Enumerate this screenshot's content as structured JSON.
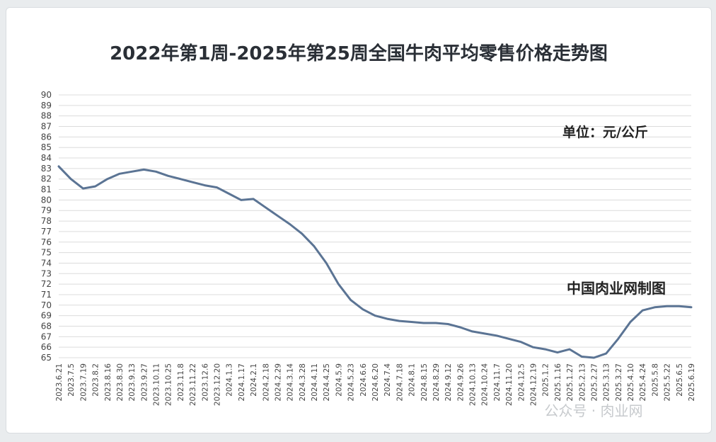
{
  "chart_data": {
    "type": "line",
    "title": "2022年第1周-2025年第25周全国牛肉平均零售价格走势图",
    "unit_label": "单位：元/公斤",
    "source_label": "中国肉业网制图",
    "watermark": "公众号 · 肉业网",
    "ylim": [
      65,
      90
    ],
    "yticks": [
      65,
      66,
      67,
      68,
      69,
      70,
      71,
      72,
      73,
      74,
      75,
      76,
      77,
      78,
      79,
      80,
      81,
      82,
      83,
      84,
      85,
      86,
      87,
      88,
      89,
      90
    ],
    "grid": true,
    "line_color": "#5b7494",
    "categories": [
      "2023.6.21",
      "2023.7.5",
      "2023.7.19",
      "2023.8.2",
      "2023.8.16",
      "2023.8.30",
      "2023.9.13",
      "2023.9.27",
      "2023.10.11",
      "2023.10.25",
      "2023.11.8",
      "2023.11.22",
      "2023.12.6",
      "2023.12.20",
      "2024.1.3",
      "2024.1.17",
      "2024.2.1",
      "2024.2.18",
      "2024.2.29",
      "2024.3.14",
      "2024.3.28",
      "2024.4.11",
      "2024.4.25",
      "2024.5.9",
      "2024.5.23",
      "2024.6.6",
      "2024.6.20",
      "2024.7.4",
      "2024.7.18",
      "2024.8.1",
      "2024.8.15",
      "2024.8.29",
      "2024.9.12",
      "2024.9.26",
      "2024.10.13",
      "2024.10.24",
      "2024.11.7",
      "2024.11.20",
      "2024.12.5",
      "2024.12.19",
      "2025.1.2",
      "2025.1.16",
      "2025.1.27",
      "2025.2.13",
      "2025.2.27",
      "2025.3.13",
      "2025.3.27",
      "2025.4.10",
      "2025.4.24",
      "2025.5.8",
      "2025.5.22",
      "2025.6.5",
      "2025.6.19"
    ],
    "series": [
      {
        "name": "",
        "values": [
          83.2,
          82.0,
          81.1,
          81.3,
          82.0,
          82.5,
          82.7,
          82.9,
          82.7,
          82.3,
          82.0,
          81.7,
          81.4,
          81.2,
          80.6,
          80.0,
          80.1,
          79.3,
          78.5,
          77.7,
          76.8,
          75.6,
          74.0,
          72.0,
          70.5,
          69.6,
          69.0,
          68.7,
          68.5,
          68.4,
          68.3,
          68.3,
          68.2,
          67.9,
          67.5,
          67.3,
          67.1,
          66.8,
          66.5,
          66.0,
          65.8,
          65.5,
          65.8,
          65.1,
          65.0,
          65.4,
          66.8,
          68.4,
          69.5,
          69.8,
          69.9,
          69.9,
          69.8
        ]
      }
    ]
  }
}
